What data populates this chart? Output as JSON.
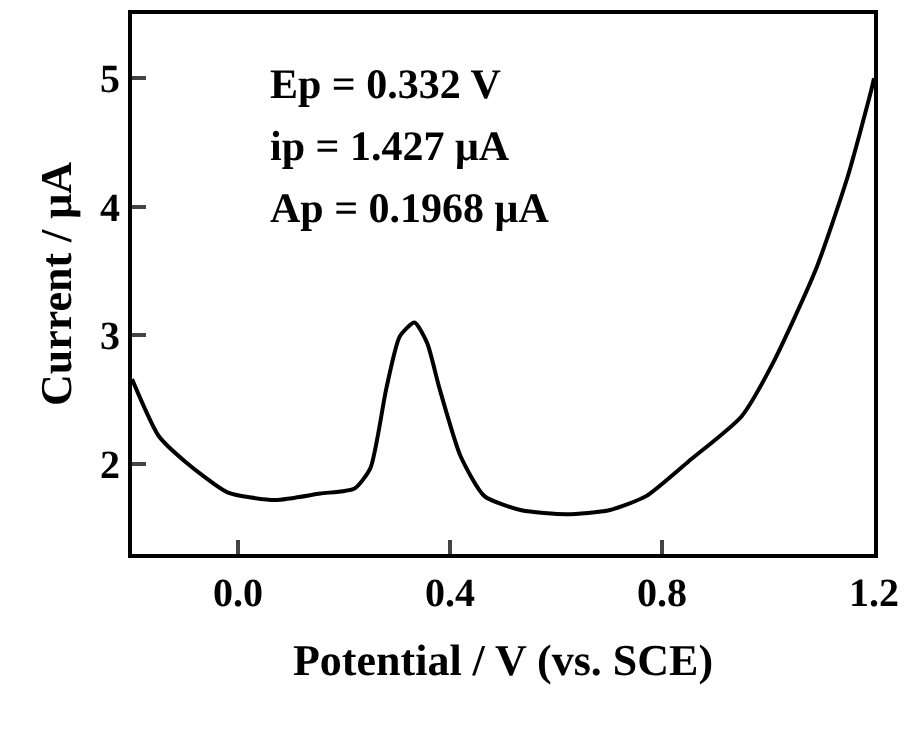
{
  "chart_data": {
    "type": "line",
    "xlabel": "Potential / V (vs. SCE)",
    "ylabel": "Current / μA",
    "annotations": [
      "Ep = 0.332 V",
      "ip = 1.427 μA",
      "Ap = 0.1968 μA"
    ],
    "x": [
      -0.2,
      -0.15,
      -0.1,
      -0.02,
      0.07,
      0.155,
      0.22,
      0.25,
      0.28,
      0.305,
      0.333,
      0.357,
      0.38,
      0.42,
      0.465,
      0.535,
      0.62,
      0.7,
      0.77,
      0.85,
      0.95,
      1.01,
      1.09,
      1.15,
      1.195,
      1.2
    ],
    "series": [
      {
        "color": "#000000",
        "values": [
          2.66,
          2.22,
          2.02,
          1.78,
          1.72,
          1.77,
          1.81,
          1.97,
          2.59,
          2.99,
          3.1,
          2.94,
          2.59,
          2.06,
          1.75,
          1.64,
          1.61,
          1.64,
          1.75,
          2.02,
          2.37,
          2.79,
          3.51,
          4.23,
          4.91,
          5.0
        ]
      }
    ],
    "xlim": [
      -0.2,
      1.2
    ],
    "xticks": [
      {
        "value": 0,
        "label": "0.0"
      },
      0.4,
      0.8,
      1.2
    ],
    "ylim": [
      1.3,
      5.5
    ],
    "yticks": [
      2,
      3,
      4,
      5
    ],
    "legend": false,
    "marker": "none",
    "line_style": "solid"
  }
}
